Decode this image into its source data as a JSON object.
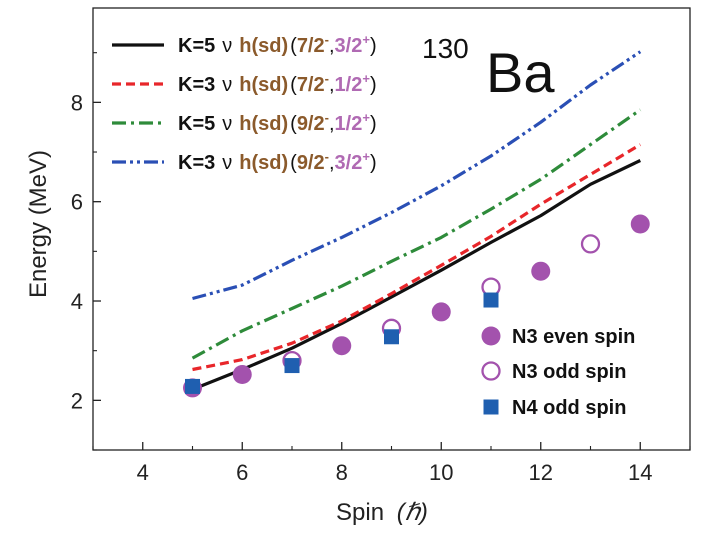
{
  "chart_data": {
    "type": "scatter",
    "xlabel": "Spin",
    "xlabel_unit": "(ℏ)",
    "ylabel": "Energy (MeV)",
    "xlim": [
      3,
      15
    ],
    "ylim": [
      1,
      9.9
    ],
    "xticks": [
      "4",
      "6",
      "8",
      "10",
      "12",
      "14"
    ],
    "yticks": [
      "2",
      "4",
      "6",
      "8"
    ],
    "nucleus_mass": "130",
    "nucleus_symbol": "Ba",
    "lines": [
      {
        "k": "K=5",
        "nu": "ν",
        "orbitals": "h(sd)",
        "states": [
          "7/2",
          "3/2"
        ],
        "parities": [
          "-",
          "+"
        ],
        "color": "#111111",
        "dash": "solid",
        "points": [
          [
            5,
            2.22
          ],
          [
            6,
            2.62
          ],
          [
            7,
            3.05
          ],
          [
            8,
            3.55
          ],
          [
            9,
            4.08
          ],
          [
            10,
            4.62
          ],
          [
            11,
            5.18
          ],
          [
            12,
            5.72
          ],
          [
            13,
            6.35
          ],
          [
            14,
            6.83
          ]
        ]
      },
      {
        "k": "K=3",
        "nu": "ν",
        "orbitals": "h(sd)",
        "states": [
          "7/2",
          "1/2"
        ],
        "parities": [
          "-",
          "+"
        ],
        "color": "#e8262a",
        "dash": "dash",
        "points": [
          [
            5,
            2.62
          ],
          [
            6,
            2.82
          ],
          [
            7,
            3.15
          ],
          [
            8,
            3.6
          ],
          [
            9,
            4.15
          ],
          [
            10,
            4.72
          ],
          [
            11,
            5.3
          ],
          [
            12,
            5.95
          ],
          [
            13,
            6.55
          ],
          [
            14,
            7.15
          ]
        ]
      },
      {
        "k": "K=5",
        "nu": "ν",
        "orbitals": "h(sd)",
        "states": [
          "9/2",
          "1/2"
        ],
        "parities": [
          "-",
          "+"
        ],
        "color": "#2e8b3a",
        "dash": "dashdot",
        "points": [
          [
            5,
            2.85
          ],
          [
            6,
            3.4
          ],
          [
            7,
            3.85
          ],
          [
            8,
            4.3
          ],
          [
            9,
            4.8
          ],
          [
            10,
            5.28
          ],
          [
            11,
            5.85
          ],
          [
            12,
            6.45
          ],
          [
            13,
            7.15
          ],
          [
            14,
            7.85
          ]
        ]
      },
      {
        "k": "K=3",
        "nu": "ν",
        "orbitals": "h(sd)",
        "states": [
          "9/2",
          "3/2"
        ],
        "parities": [
          "-",
          "+"
        ],
        "color": "#2a4fb5",
        "dash": "dashdotdot",
        "points": [
          [
            5,
            4.05
          ],
          [
            6,
            4.32
          ],
          [
            7,
            4.82
          ],
          [
            8,
            5.28
          ],
          [
            9,
            5.78
          ],
          [
            10,
            6.32
          ],
          [
            11,
            6.92
          ],
          [
            12,
            7.6
          ],
          [
            13,
            8.35
          ],
          [
            14,
            9.02
          ]
        ]
      }
    ],
    "markers": [
      {
        "name": "N3 even spin",
        "shape": "circle-filled",
        "color": "#a352ad",
        "points": [
          [
            5,
            2.25
          ],
          [
            6,
            2.52
          ],
          [
            8,
            3.1
          ],
          [
            10,
            3.78
          ],
          [
            12,
            4.6
          ],
          [
            14,
            5.55
          ]
        ]
      },
      {
        "name": "N3 odd spin",
        "shape": "circle-open",
        "color": "#a352ad",
        "points": [
          [
            7,
            2.8
          ],
          [
            9,
            3.45
          ],
          [
            11,
            4.28
          ],
          [
            13,
            5.15
          ]
        ]
      },
      {
        "name": "N4 odd spin",
        "shape": "square-filled",
        "color": "#1f5fb0",
        "points": [
          [
            5,
            2.28
          ],
          [
            7,
            2.7
          ],
          [
            9,
            3.28
          ],
          [
            11,
            4.02
          ]
        ]
      }
    ],
    "colors": {
      "k_label": "#111111",
      "orbital": "#8b5a2b",
      "state": "#b06ab3"
    }
  }
}
